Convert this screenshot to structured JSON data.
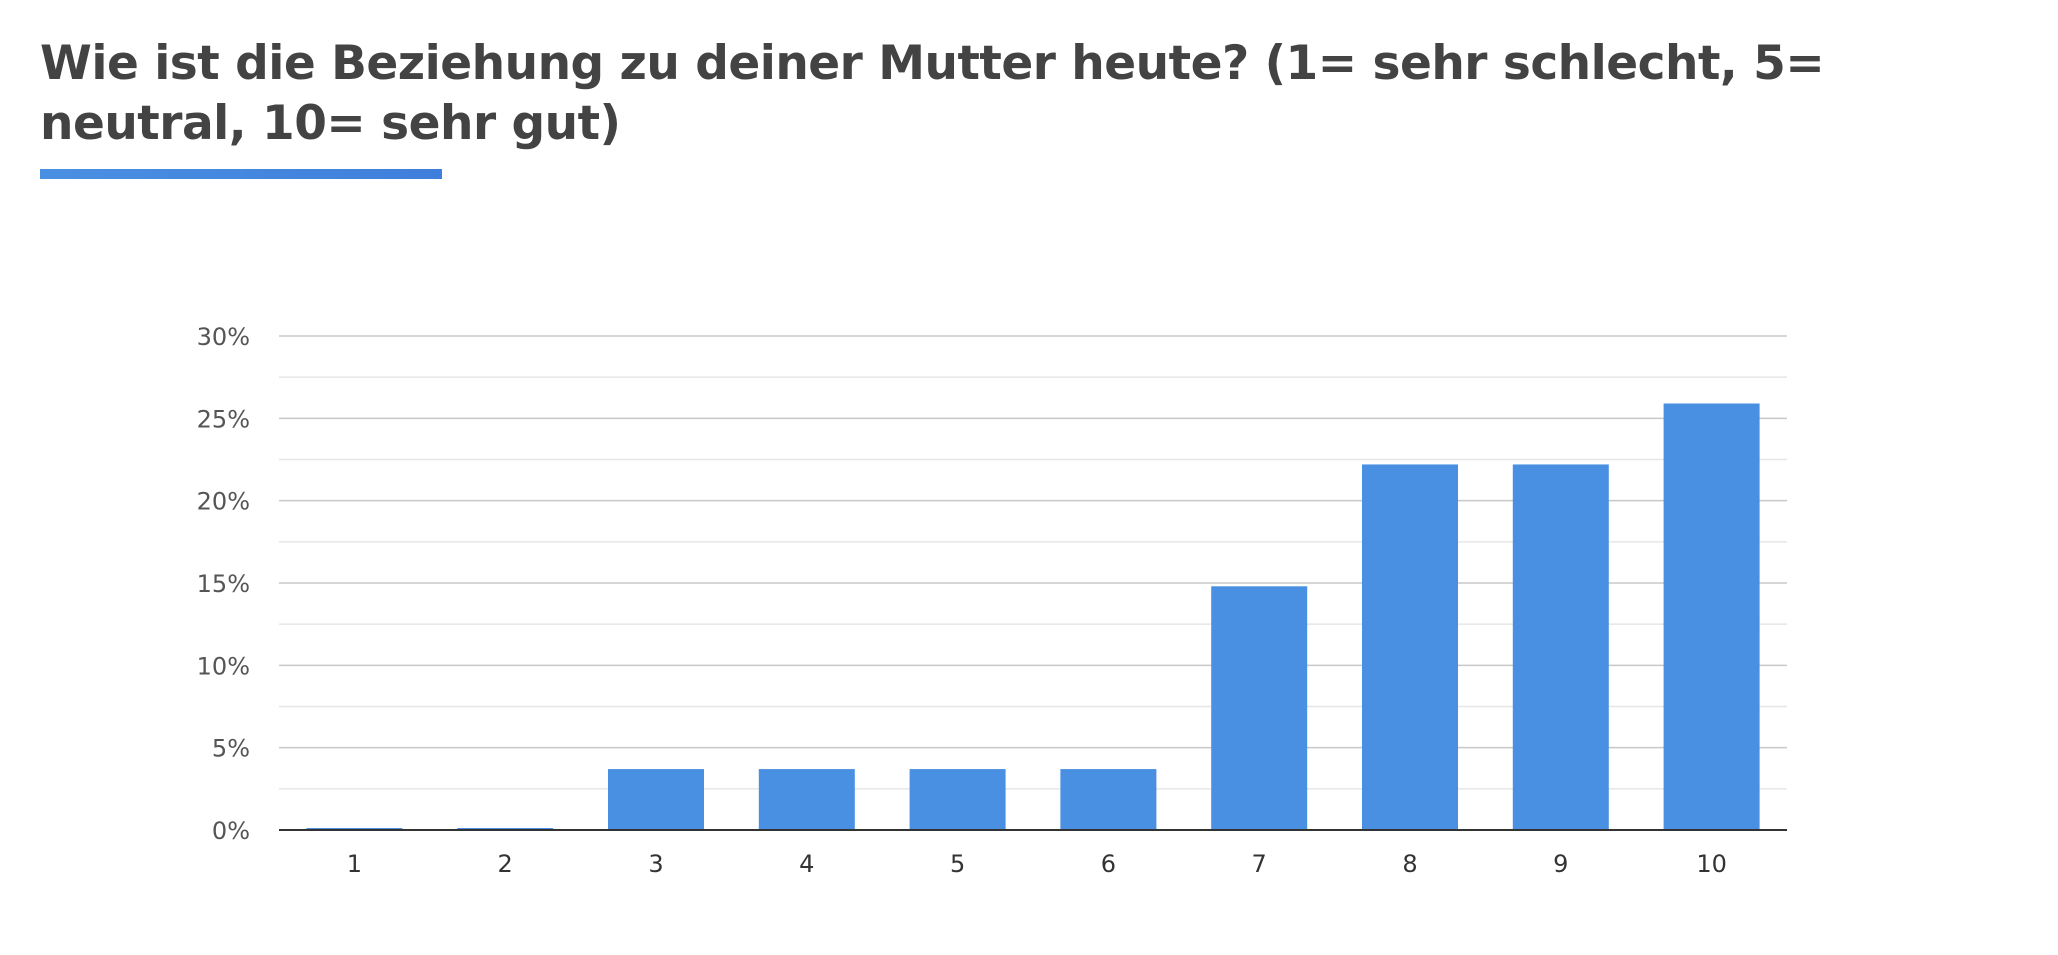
{
  "page": {
    "title": "Wie ist die Beziehung zu deiner Mutter heute? (1= sehr schlecht, 5= neutral, 10= sehr gut)"
  },
  "colors": {
    "bar": "#4a90e2",
    "title": "#434343",
    "underline": "#3f7fdc",
    "major_grid": "#c8c8c8",
    "minor_grid": "#e6e6e6",
    "axis": "#333333"
  },
  "chart_data": {
    "type": "bar",
    "title": "Wie ist die Beziehung zu deiner Mutter heute? (1= sehr schlecht, 5= neutral, 10= sehr gut)",
    "xlabel": "",
    "ylabel": "",
    "categories": [
      "1",
      "2",
      "3",
      "4",
      "5",
      "6",
      "7",
      "8",
      "9",
      "10"
    ],
    "values": [
      0,
      0,
      3.7,
      3.7,
      3.7,
      3.7,
      14.8,
      22.2,
      22.2,
      25.9
    ],
    "ylim": [
      0,
      30
    ],
    "y_ticks": [
      0,
      5,
      10,
      15,
      20,
      25,
      30
    ],
    "y_tick_labels": [
      "0%",
      "5%",
      "10%",
      "15%",
      "20%",
      "25%",
      "30%"
    ],
    "grid": true,
    "legend": "none"
  }
}
